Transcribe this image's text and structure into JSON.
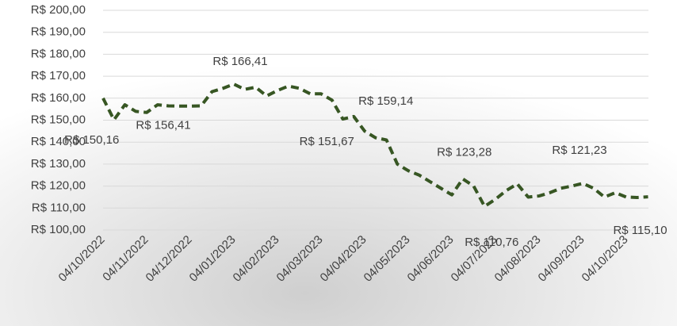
{
  "chart_data": {
    "type": "line",
    "categories": [
      "04/10/2022",
      null,
      null,
      null,
      "04/11/2022",
      null,
      null,
      null,
      "04/12/2022",
      null,
      null,
      null,
      "04/01/2023",
      null,
      null,
      null,
      "04/02/2023",
      null,
      null,
      null,
      "04/03/2023",
      null,
      null,
      null,
      "04/04/2023",
      null,
      null,
      null,
      "04/05/2023",
      null,
      null,
      null,
      "04/06/2023",
      null,
      null,
      null,
      "04/07/2023",
      null,
      null,
      null,
      "04/08/2023",
      null,
      null,
      null,
      "04/09/2023",
      null,
      null,
      null,
      "04/10/2023",
      null,
      null
    ],
    "values": [
      160,
      150.16,
      157,
      154,
      153.5,
      157,
      156.5,
      156.4,
      156.41,
      156.5,
      163,
      164.5,
      166.41,
      164,
      165,
      161,
      163.5,
      165.5,
      164.5,
      162,
      162,
      159.14,
      150.5,
      151.67,
      145,
      142,
      141,
      130,
      127,
      125,
      122,
      119,
      116,
      123.28,
      120,
      110.76,
      114,
      118,
      121,
      115,
      115.5,
      117,
      119,
      120,
      121.23,
      119,
      115,
      117,
      115,
      114.8,
      115.1
    ],
    "value_labels": [
      null,
      "R$ 150,16",
      null,
      null,
      null,
      null,
      null,
      null,
      "R$ 156,41",
      null,
      null,
      null,
      "R$ 166,41",
      null,
      null,
      null,
      null,
      null,
      null,
      null,
      null,
      "R$ 159,14",
      null,
      "R$ 151,67",
      null,
      null,
      null,
      null,
      null,
      null,
      null,
      null,
      null,
      "R$ 123,28",
      null,
      "R$ 110,76",
      null,
      null,
      null,
      null,
      null,
      null,
      null,
      null,
      "R$ 121,23",
      null,
      null,
      null,
      null,
      null,
      "R$ 115,10"
    ],
    "color": "#375623",
    "ylim": [
      100,
      200
    ],
    "yticks": [
      {
        "value": 100,
        "label": "R$ 100,00"
      },
      {
        "value": 110,
        "label": "R$ 110,00"
      },
      {
        "value": 120,
        "label": "R$ 120,00"
      },
      {
        "value": 130,
        "label": "R$ 130,00"
      },
      {
        "value": 140,
        "label": "R$ 140,00"
      },
      {
        "value": 150,
        "label": "R$ 150,00"
      },
      {
        "value": 160,
        "label": "R$ 160,00"
      },
      {
        "value": 170,
        "label": "R$ 170,00"
      },
      {
        "value": 180,
        "label": "R$ 180,00"
      },
      {
        "value": 190,
        "label": "R$ 190,00"
      },
      {
        "value": 200,
        "label": "R$ 200,00"
      }
    ],
    "grid": true
  }
}
